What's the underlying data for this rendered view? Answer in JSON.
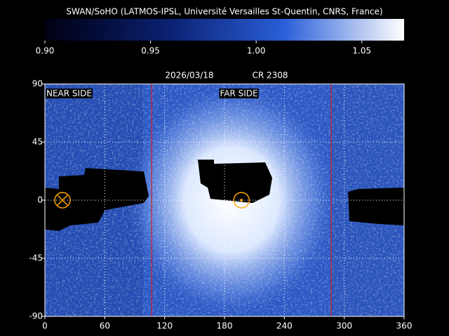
{
  "chart_data": {
    "type": "heatmap",
    "title": "SWAN/SoHO (LATMOS-IPSL, Université Versailles St-Quentin, CNRS, France)",
    "date": "2026/03/18",
    "rotation": "CR 2308",
    "colorbar": {
      "clim": [
        0.9,
        1.07
      ],
      "colors": [
        "#000010",
        "#0a1f6e",
        "#2a5fd8",
        "#ffffff"
      ],
      "ticks": [
        {
          "value": 0.9,
          "label": "0.90"
        },
        0.95,
        {
          "value": 1.0,
          "label": "1.00"
        },
        1.05
      ]
    },
    "xlim": [
      0,
      360
    ],
    "xticks": [
      0,
      60,
      120,
      180,
      240,
      300,
      360
    ],
    "ylim": [
      -90,
      90
    ],
    "yticks": [
      -90,
      -45,
      0,
      45,
      90
    ],
    "grid": true,
    "vlines": {
      "x": [
        107,
        287
      ],
      "color": "#d02020"
    },
    "markers": {
      "color": "#ffa500",
      "points": [
        {
          "x": 17.6,
          "y": 0,
          "symbol": "cross"
        },
        {
          "x": 197,
          "y": 0,
          "symbol": "dot"
        }
      ]
    },
    "annotations": [
      {
        "text": "NEAR SIDE",
        "x": 0,
        "y": 90
      },
      {
        "text": "FAR SIDE",
        "x": 174,
        "y": 90
      }
    ]
  }
}
